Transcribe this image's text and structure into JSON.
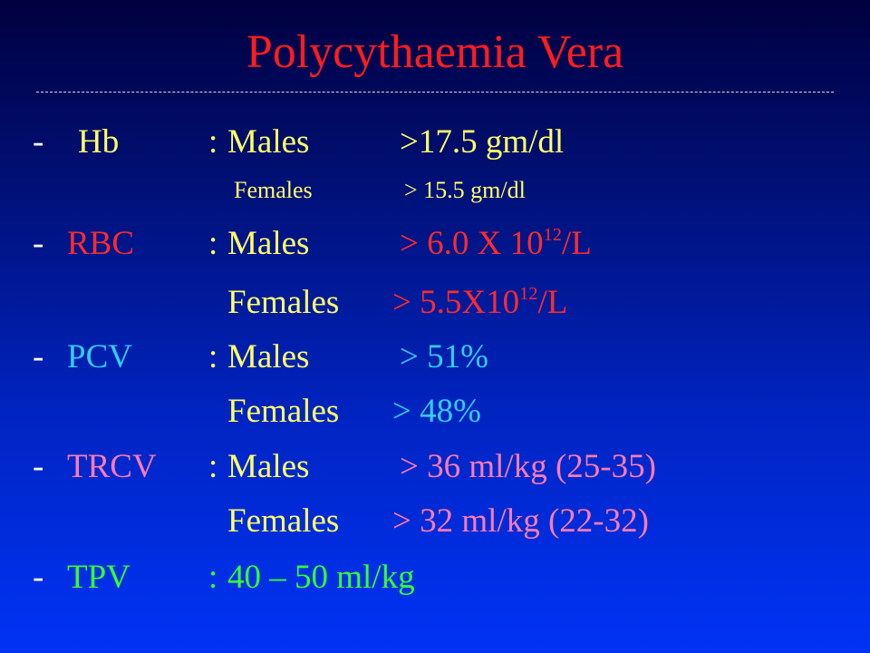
{
  "slide": {
    "title": "Polycythaemia Vera",
    "bullet": "-",
    "colon": ":",
    "rows": [
      {
        "param": "Hb",
        "males": "Males",
        "males_value": ">17.5 gm/dl",
        "females": "Females",
        "females_value": "> 15.5 gm/dl"
      },
      {
        "param": "RBC",
        "males": "Males",
        "males_value_prefix": "> 6.0 X 10",
        "males_value_exp": "12",
        "males_value_suffix": "/L",
        "females": "Females",
        "females_value_prefix": "> 5.5X10",
        "females_value_exp": "12",
        "females_value_suffix": "/L"
      },
      {
        "param": "PCV",
        "males": "Males",
        "males_value": "> 51%",
        "females": "Females",
        "females_value": "> 48%"
      },
      {
        "param": "TRCV",
        "males": "Males",
        "males_value": "> 36 ml/kg (25-35)",
        "females": "Females",
        "females_value": "> 32 ml/kg (22-32)"
      },
      {
        "param": "TPV",
        "value": "40 – 50 ml/kg"
      }
    ]
  },
  "colors": {
    "title": "#ff1c1c",
    "hb": "#ffff66",
    "rbc": "#ff2b2b",
    "pcv": "#33ccff",
    "trcv": "#ff7ab3",
    "tpv": "#33ff33",
    "labels": "#ffff66"
  }
}
